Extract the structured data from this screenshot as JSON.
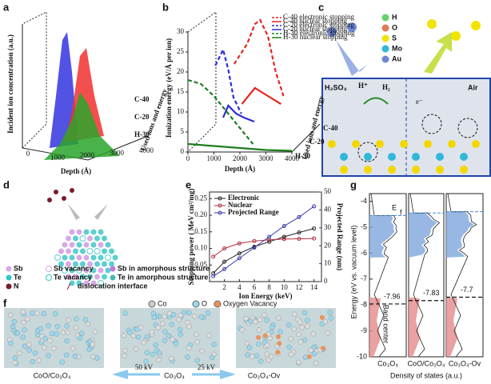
{
  "panel_labels": [
    "a",
    "b",
    "c",
    "d",
    "e",
    "f",
    "g"
  ],
  "panel_a": {
    "y_label": "Incident ion concentration (a.u.)",
    "x_label": "Depth (Å)",
    "xticks": [
      "0",
      "1000",
      "2000",
      "3000",
      "4000"
    ],
    "series_labels": [
      "C-40",
      "C-20",
      "H-30"
    ],
    "z_label": "Used ions and energy"
  },
  "panel_c": {
    "legend": [
      "H",
      "O",
      "S",
      "Mo",
      "Au"
    ],
    "left_label": "H₂SO₄",
    "proton": "H⁺",
    "hydrogen": "H₂",
    "right_label": "Air",
    "electron": "e⁻"
  },
  "panel_d": {
    "legend": [
      "Sb",
      "Sb vacancy",
      "Sb in amorphous structure",
      "Te",
      "Te vacancy",
      "Te in amorphous structure",
      "N",
      "dislocation interface"
    ]
  },
  "panel_f": {
    "legend": [
      "Co",
      "O",
      "Oxygen Vacancy"
    ],
    "left": "CoO/Co₃O₄",
    "left_arrow": "50 kV",
    "middle": "Co₃O₄",
    "right_arrow": "25 kV",
    "right": "Co₃O₄-Ov"
  },
  "chart_data": [
    {
      "type": "line3d",
      "y_label": "Ionization energy (eV/Å per ion)",
      "x_label": "Depth (Å)",
      "z_label": "Used ions and energy",
      "group_labels": [
        "C-40",
        "C-20",
        "H-30"
      ],
      "xlim": [
        0,
        4000
      ],
      "xticks": [
        0,
        1000,
        2000,
        3000,
        4000
      ],
      "ylim": [
        0,
        30
      ],
      "yticks": [
        0,
        5,
        10,
        15,
        20,
        25,
        30
      ],
      "series": [
        {
          "name": "C-40 electronic stopping",
          "color": "#e8241f",
          "dash": true,
          "x": [
            700,
            1200,
            1500,
            1700,
            2000,
            2300,
            2600
          ],
          "values": [
            15,
            20,
            25,
            26,
            22,
            13,
            7
          ]
        },
        {
          "name": "C-40 nuclear stopping",
          "color": "#e8241f",
          "dash": false,
          "x": [
            1000,
            1500,
            2000,
            2500
          ],
          "values": [
            5,
            9,
            7,
            5
          ]
        },
        {
          "name": "C-20 electronic stopping",
          "color": "#2b2bdc",
          "dash": true,
          "x": [
            500,
            800,
            1000,
            1200,
            1500
          ],
          "values": [
            18,
            22,
            17,
            10,
            6
          ]
        },
        {
          "name": "C-20 nuclear stopping",
          "color": "#2b2bdc",
          "dash": false,
          "x": [
            800,
            1000,
            1300,
            1600,
            2000
          ],
          "values": [
            5,
            8,
            6,
            5,
            4
          ]
        },
        {
          "name": "H-30 electronic stopping",
          "color": "#1e7d1e",
          "dash": true,
          "x": [
            0,
            500,
            1000,
            1500,
            2000,
            2500
          ],
          "values": [
            18,
            17,
            14,
            10,
            6,
            2
          ]
        },
        {
          "name": "H-30 nuclear stopping",
          "color": "#1e7d1e",
          "dash": false,
          "x": [
            0,
            1000,
            2000,
            3000,
            4000
          ],
          "values": [
            2,
            1.5,
            1,
            0.5,
            0.3
          ]
        }
      ]
    },
    {
      "type": "line",
      "x_label": "Ion Energy (keV)",
      "y_label": "Stopping power ( MeV cm²/mg)",
      "y2_label": "Projected Range (nm)",
      "xlim": [
        0,
        15
      ],
      "xticks": [
        2,
        4,
        6,
        8,
        10,
        12,
        14
      ],
      "ylim": [
        0,
        0.27
      ],
      "yticks": [
        {
          "value": 0.05,
          "label": "0.05"
        },
        {
          "value": 0.1,
          "label": "0.10"
        },
        {
          "value": 0.15,
          "label": "0.15"
        },
        {
          "value": 0.2,
          "label": "0.20"
        },
        {
          "value": 0.25,
          "label": "0.25"
        }
      ],
      "y2lim": [
        0,
        50
      ],
      "y2ticks": [
        0,
        10,
        20,
        30,
        40,
        50
      ],
      "legend": "upper left",
      "series": [
        {
          "name": "Electronic",
          "color": "#222222",
          "x": [
            0.5,
            2,
            4,
            6,
            8,
            10,
            12,
            14
          ],
          "values": [
            0.025,
            0.06,
            0.085,
            0.105,
            0.12,
            0.135,
            0.148,
            0.16
          ]
        },
        {
          "name": "Nuclear",
          "color": "#b03040",
          "x": [
            0.5,
            2,
            4,
            6,
            8,
            10,
            12,
            14
          ],
          "values": [
            0.075,
            0.1,
            0.115,
            0.122,
            0.126,
            0.128,
            0.129,
            0.13
          ]
        },
        {
          "name": "Projected Range",
          "color": "#3a3aa8",
          "axis": "y2",
          "x": [
            0.5,
            2,
            4,
            6,
            8,
            10,
            12,
            14
          ],
          "values": [
            3,
            7,
            13,
            19,
            25,
            31,
            36,
            42
          ]
        }
      ]
    },
    {
      "type": "dos",
      "y_label": "Energy (eV vs. vacuum level)",
      "x_label": "Density of states (a.u.)",
      "fermi_label": "E",
      "fermi_sub": "f",
      "band_center_label": "Band center",
      "ylim": [
        -10,
        -3.7
      ],
      "yticks": [
        -4,
        -5,
        -6,
        -7,
        -8,
        -9,
        -10
      ],
      "categories": [
        "Co₃O₄",
        "CoO/Co₃O₄",
        "Co₃O₄-Ov"
      ],
      "values": [
        -7.96,
        -7.83,
        -7.7
      ],
      "fermi_levels": [
        -4.55,
        -4.45,
        -4.4
      ]
    }
  ]
}
